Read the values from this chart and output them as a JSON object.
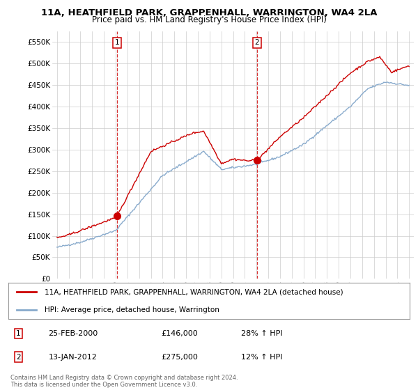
{
  "title": "11A, HEATHFIELD PARK, GRAPPENHALL, WARRINGTON, WA4 2LA",
  "subtitle": "Price paid vs. HM Land Registry's House Price Index (HPI)",
  "ylabel_ticks": [
    "£0",
    "£50K",
    "£100K",
    "£150K",
    "£200K",
    "£250K",
    "£300K",
    "£350K",
    "£400K",
    "£450K",
    "£500K",
    "£550K"
  ],
  "ytick_values": [
    0,
    50000,
    100000,
    150000,
    200000,
    250000,
    300000,
    350000,
    400000,
    450000,
    500000,
    550000
  ],
  "ylim": [
    0,
    575000
  ],
  "red_line_color": "#cc0000",
  "blue_line_color": "#88aacc",
  "legend_red": "11A, HEATHFIELD PARK, GRAPPENHALL, WARRINGTON, WA4 2LA (detached house)",
  "legend_blue": "HPI: Average price, detached house, Warrington",
  "table_row1": [
    "1",
    "25-FEB-2000",
    "£146,000",
    "28% ↑ HPI"
  ],
  "table_row2": [
    "2",
    "13-JAN-2012",
    "£275,000",
    "12% ↑ HPI"
  ],
  "footnote": "Contains HM Land Registry data © Crown copyright and database right 2024.\nThis data is licensed under the Open Government Licence v3.0.",
  "background_color": "#ffffff",
  "grid_color": "#cccccc",
  "year1": 2000.125,
  "year2": 2012.042,
  "val1": 146000,
  "val2": 275000
}
